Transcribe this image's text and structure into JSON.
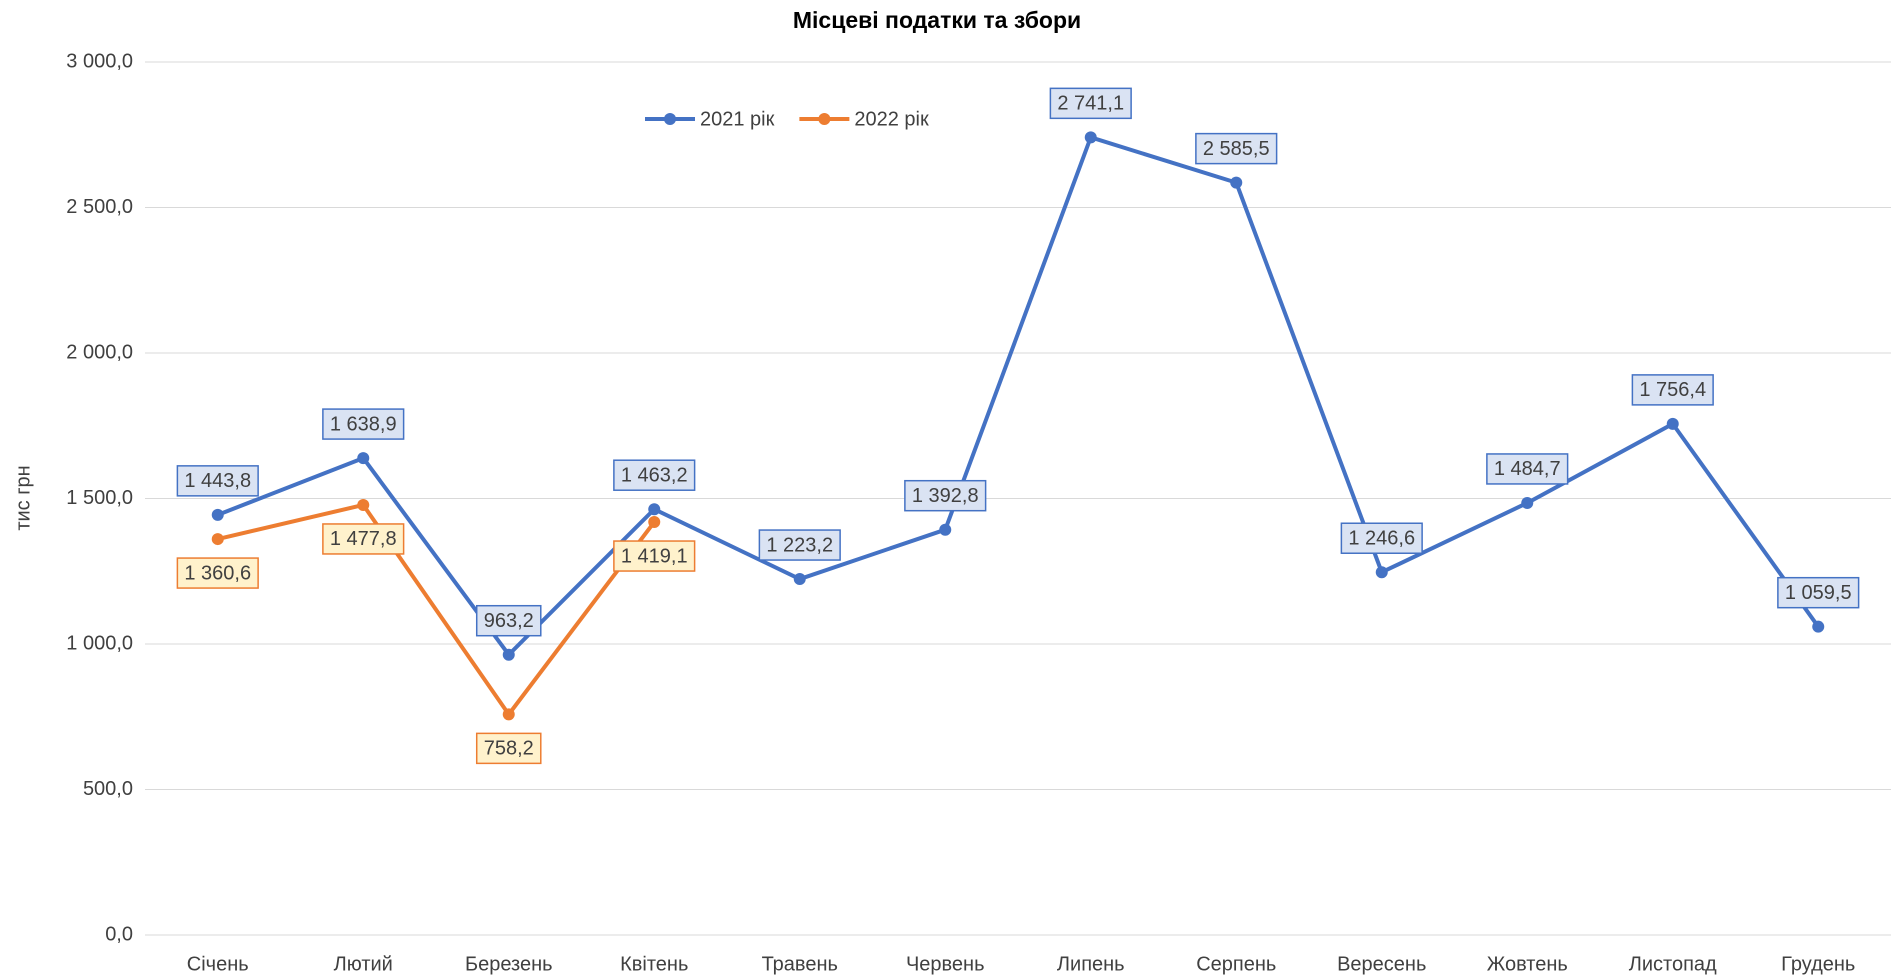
{
  "chart_data": {
    "type": "line",
    "title": "Місцеві податки та збори",
    "y_label": "тис грн",
    "categories": [
      "Січень",
      "Лютий",
      "Березень",
      "Квітень",
      "Травень",
      "Червень",
      "Липень",
      "Серпень",
      "Вересень",
      "Жовтень",
      "Листопад",
      "Грудень"
    ],
    "series": [
      {
        "name": "2021 рік",
        "color": "#4472c4",
        "values": [
          1443.8,
          1638.9,
          963.2,
          1463.2,
          1223.2,
          1392.8,
          2741.1,
          2585.5,
          1246.6,
          1484.7,
          1756.4,
          1059.5
        ],
        "value_labels": [
          "1 443,8",
          "1 638,9",
          "963,2",
          "1 463,2",
          "1 223,2",
          "1 392,8",
          "2 741,1",
          "2 585,5",
          "1 246,6",
          "1 484,7",
          "1 756,4",
          "1 059,5"
        ]
      },
      {
        "name": "2022 рік",
        "color": "#ed7d31",
        "values": [
          1360.6,
          1477.8,
          758.2,
          1419.1,
          null,
          null,
          null,
          null,
          null,
          null,
          null,
          null
        ],
        "value_labels": [
          "1 360,6",
          "1 477,8",
          "758,2",
          "1 419,1",
          null,
          null,
          null,
          null,
          null,
          null,
          null,
          null
        ]
      }
    ],
    "ylim": [
      0,
      3000
    ],
    "yticks": [
      {
        "value": 0,
        "label": "0,0"
      },
      {
        "value": 500,
        "label": "500,0"
      },
      {
        "value": 1000,
        "label": "1 000,0"
      },
      {
        "value": 1500,
        "label": "1 500,0"
      },
      {
        "value": 2000,
        "label": "2 000,0"
      },
      {
        "value": 2500,
        "label": "2 500,0"
      },
      {
        "value": 3000,
        "label": "3 000,0"
      }
    ],
    "grid": true,
    "legend": "top"
  }
}
